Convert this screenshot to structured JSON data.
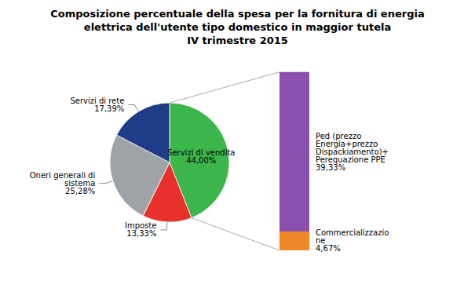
{
  "chart_data": [
    {
      "type": "pie",
      "title": "Composizione percentuale della spesa per la fornitura di energia\nelettrica dell'utente tipo domestico in maggior tutela\nIV trimestre 2015",
      "categories": [
        "Servizi di vendita",
        "Imposte",
        "Oneri generali di\nsistema",
        "Servizi di rete"
      ],
      "values": [
        44.0,
        13.33,
        25.28,
        17.39
      ],
      "value_labels": [
        "44,00%",
        "13,33%",
        "25,28%",
        "17,39%"
      ],
      "colors": [
        "#3cb54a",
        "#e8312a",
        "#9ea3a8",
        "#1f3c88"
      ],
      "data_labels": true
    },
    {
      "type": "bar",
      "stacked": true,
      "categories": [
        null
      ],
      "series": [
        {
          "name": "Commercializzazio\nne",
          "color": "#f0882a",
          "values": [
            4.67
          ],
          "value_labels": [
            "4,67%"
          ]
        },
        {
          "name": "Ped (prezzo\nEnergia+prezzo\nDispackiamento)+\nPerequazione PPE",
          "color": "#8b4fad",
          "values": [
            39.33
          ],
          "value_labels": [
            "39,33%"
          ]
        }
      ],
      "ylim": [
        0,
        49
      ],
      "tick_labels": false,
      "data_labels": true
    }
  ]
}
